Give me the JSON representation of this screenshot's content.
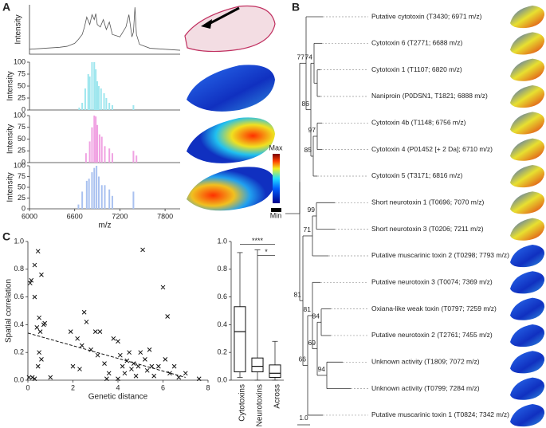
{
  "panel_labels": [
    "A",
    "B",
    "C"
  ],
  "colorbar": {
    "max_label": "Max",
    "min_label": "Min"
  },
  "chart_data": [
    {
      "type": "line",
      "color": "#555555",
      "ylabel": "Intensity",
      "xlim": [
        6000,
        8000
      ],
      "ylim": [
        0,
        100
      ],
      "x": [
        6000,
        6200,
        6400,
        6500,
        6600,
        6650,
        6700,
        6730,
        6760,
        6800,
        6830,
        6860,
        6880,
        6900,
        6940,
        6980,
        7020,
        7060,
        7100,
        7200,
        7280,
        7320,
        7360,
        7380,
        7400,
        7420,
        7460,
        7600,
        7800,
        8000
      ],
      "values": [
        10,
        12,
        14,
        16,
        22,
        30,
        40,
        55,
        75,
        60,
        80,
        70,
        82,
        60,
        55,
        70,
        50,
        65,
        40,
        35,
        55,
        80,
        35,
        45,
        95,
        40,
        20,
        12,
        10,
        8
      ]
    },
    {
      "type": "bar",
      "color": "#9ee6ee",
      "ylabel": "Intensity",
      "xlim": [
        6000,
        8000
      ],
      "ylim": [
        0,
        100
      ],
      "yticks": [
        0,
        25,
        50,
        75,
        100
      ],
      "x": [
        6660,
        6700,
        6740,
        6780,
        6800,
        6830,
        6860,
        6880,
        6900,
        6920,
        6950,
        6990,
        7020,
        7060,
        7100,
        7380
      ],
      "values": [
        5,
        15,
        45,
        75,
        70,
        100,
        100,
        85,
        60,
        50,
        45,
        35,
        25,
        15,
        10,
        10
      ]
    },
    {
      "type": "bar",
      "color": "#f0a2e2",
      "ylabel": "Intensity",
      "xlim": [
        6000,
        8000
      ],
      "ylim": [
        0,
        100
      ],
      "yticks": [
        0,
        25,
        50,
        75,
        100
      ],
      "x": [
        6750,
        6800,
        6830,
        6860,
        6880,
        6900,
        6930,
        6960,
        7000,
        7060,
        7100,
        7380,
        7420
      ],
      "values": [
        20,
        45,
        75,
        100,
        98,
        80,
        60,
        55,
        35,
        30,
        20,
        25,
        15
      ]
    },
    {
      "type": "bar",
      "color": "#a9c1f0",
      "ylabel": "Intensity",
      "xlabel": "m/z",
      "xlim": [
        6000,
        8000
      ],
      "ylim": [
        0,
        100
      ],
      "yticks": [
        0,
        25,
        50,
        75,
        100
      ],
      "xticks": [
        6000,
        6600,
        7200,
        7800
      ],
      "x": [
        6650,
        6700,
        6760,
        6790,
        6830,
        6860,
        6890,
        6920,
        6960,
        7000,
        7060,
        7100,
        7380
      ],
      "values": [
        10,
        40,
        65,
        70,
        85,
        95,
        100,
        75,
        55,
        55,
        45,
        30,
        40
      ]
    },
    {
      "type": "scatter",
      "xlabel": "Genetic distance",
      "ylabel": "Spatial correlation",
      "xlim": [
        0,
        8
      ],
      "ylim": [
        0,
        1
      ],
      "xticks": [
        0,
        2,
        4,
        6,
        8
      ],
      "yticks": [
        {
          "value": 0,
          "label": "0.0"
        },
        0.2,
        0.4,
        0.6,
        0.8,
        {
          "value": 1,
          "label": "1.0"
        }
      ],
      "x": [
        0.1,
        0.15,
        0.3,
        0.45,
        0.6,
        0.3,
        0.5,
        0.7,
        0.75,
        0.4,
        0.55,
        0.5,
        0.6,
        0.45,
        0.2,
        0.05,
        0.3,
        1.0,
        1.9,
        2.2,
        2.5,
        2.6,
        2.4,
        2.0,
        2.3,
        2.8,
        3.0,
        3.2,
        3.1,
        3.4,
        3.6,
        3.8,
        4.0,
        4.1,
        4.2,
        4.3,
        4.5,
        4.4,
        4.6,
        4.7,
        4.8,
        4.9,
        5.1,
        5.0,
        5.2,
        5.3,
        5.4,
        5.5,
        5.6,
        5.8,
        6.0,
        6.2,
        6.1,
        6.3,
        6.5,
        6.7,
        7.0,
        7.6,
        3.5,
        4.0
      ],
      "values": [
        0.7,
        0.72,
        0.83,
        0.93,
        0.76,
        0.6,
        0.45,
        0.4,
        0.41,
        0.38,
        0.35,
        0.2,
        0.15,
        0.1,
        0.02,
        0.02,
        0.01,
        0.02,
        0.35,
        0.3,
        0.49,
        0.42,
        0.25,
        0.1,
        0.08,
        0.22,
        0.35,
        0.35,
        0.18,
        0.12,
        0.05,
        0.3,
        0.28,
        0.18,
        0.1,
        0.05,
        0.2,
        0.14,
        0.08,
        0.12,
        0.03,
        0.1,
        0.94,
        0.2,
        0.15,
        0.07,
        0.22,
        0.1,
        0.03,
        0.1,
        0.67,
        0.46,
        0.15,
        0.05,
        0.1,
        0.02,
        0.05,
        0.01,
        0.01,
        0.01
      ],
      "trend": {
        "x": [
          0,
          7
        ],
        "values": [
          0.34,
          0.02
        ]
      }
    },
    {
      "type": "box",
      "categories": [
        "Cytotoxins",
        "Neurotoxins",
        "Across"
      ],
      "ylim": [
        0,
        1
      ],
      "yticks": [
        {
          "value": 0,
          "label": "0.0"
        },
        0.2,
        0.4,
        0.6,
        0.8,
        {
          "value": 1,
          "label": "1.0"
        }
      ],
      "min": [
        0.02,
        0,
        0
      ],
      "q1": [
        0.06,
        0.06,
        0.02
      ],
      "median": [
        0.35,
        0.1,
        0.05
      ],
      "q3": [
        0.53,
        0.16,
        0.11
      ],
      "max": [
        0.92,
        0.94,
        0.28
      ],
      "annotations": [
        "****",
        "*"
      ]
    }
  ],
  "tree": {
    "leaves": [
      "Putative cytotoxin (T3430; 6971 m/z)",
      "Cytotoxin 6 (T2771; 6688 m/z)",
      "Cytotoxin 1 (T1107; 6820 m/z)",
      "Naniproin (P0DSN1, T1821; 6888 m/z)",
      "Cytotoxin 4b (T1148; 6756 m/z)",
      "Cytotoxin 4 (P01452 [+ 2 Da]; 6710 m/z)",
      "Cytotoxin 5 (T3171; 6816 m/z)",
      "Short neurotoxin 1 (T0696; 7070 m/z)",
      "Short neurotoxin 3 (T0206; 7211 m/z)",
      "Putative muscarinic toxin 2 (T0298; 7793 m/z)",
      "Putative neurotoxin 3 (T0074; 7369 m/z)",
      "Oxiana-like weak toxin (T0797; 7259 m/z)",
      "Putative neurotoxin 2 (T2761; 7455 m/z)",
      "Unknown activity (T1809; 7072 m/z)",
      "Unknown activity (T0799; 7284 m/z)",
      "Putative muscarinic toxin 1 (T0824; 7342 m/z)"
    ],
    "support": [
      77,
      74,
      86,
      97,
      85,
      99,
      71,
      81,
      84,
      69,
      94,
      81,
      66
    ],
    "scale_label": "1.0"
  }
}
